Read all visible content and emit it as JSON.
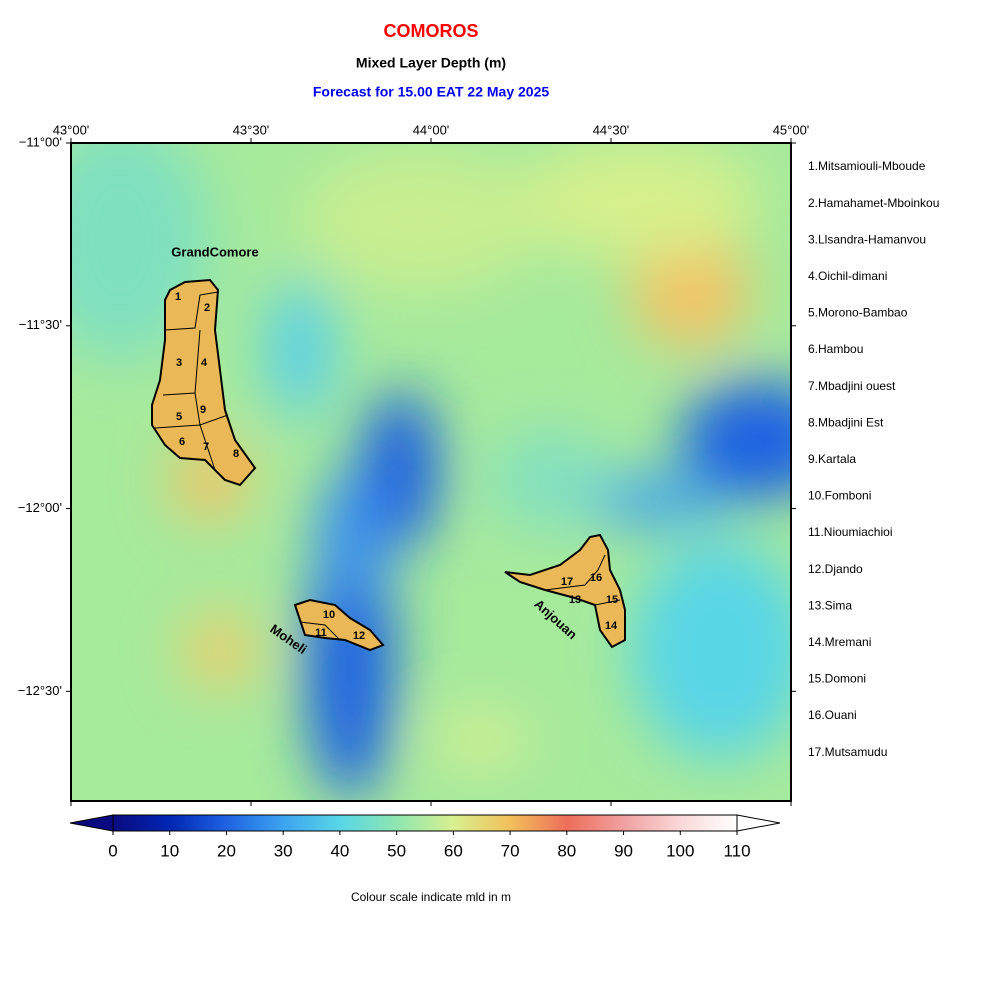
{
  "title": "COMOROS",
  "subtitle": "Mixed Layer Depth (m)",
  "forecast": "Forecast for  15.00 EAT 22 May 2025",
  "map": {
    "xlim": [
      43,
      45
    ],
    "ylim": [
      -11,
      -12.8
    ],
    "xticks": [
      {
        "value": 43,
        "label": "43°00'"
      },
      {
        "value": 43.5,
        "label": "43°30'"
      },
      {
        "value": 44,
        "label": "44°00'"
      },
      {
        "value": 44.5,
        "label": "44°30'"
      },
      {
        "value": 45,
        "label": "45°00'"
      }
    ],
    "yticks": [
      {
        "value": -11,
        "label": "−11°00'"
      },
      {
        "value": -11.5,
        "label": "−11°30'"
      },
      {
        "value": -12,
        "label": "−12°00'"
      },
      {
        "value": -12.5,
        "label": "−12°30'"
      }
    ],
    "island_labels": [
      "GrandComore",
      "Moheli",
      "Anjouan"
    ],
    "region_numbers": [
      1,
      2,
      3,
      4,
      5,
      6,
      7,
      8,
      9,
      10,
      11,
      12,
      13,
      14,
      15,
      16,
      17
    ]
  },
  "legend": [
    "1.Mitsamiouli-Mboude",
    "2.Hamahamet-Mboinkou",
    "3.Llsandra-Hamanvou",
    "4.Oichil-dimani",
    "5.Morono-Bambao",
    "6.Hambou",
    "7.Mbadjini ouest",
    "8.Mbadjini Est",
    "9.Kartala",
    "10.Fomboni",
    "11.Nioumiachioi",
    "12.Djando",
    "13.Sima",
    "14.Mremani",
    "15.Domoni",
    "16.Ouani",
    "17.Mutsamudu"
  ],
  "colorbar": {
    "lim": [
      0,
      110
    ],
    "ticks": [
      0,
      10,
      20,
      30,
      40,
      50,
      60,
      70,
      80,
      90,
      100,
      110
    ],
    "colors": [
      "#0a0a80",
      "#0026b4",
      "#1f62e2",
      "#3ca4f0",
      "#58d6e6",
      "#8ee6b0",
      "#d8f090",
      "#f2c05a",
      "#ee6e5a",
      "#f0a0a0",
      "#fad8d8",
      "#ffffff"
    ],
    "label": "Colour scale indicate mld in m"
  }
}
